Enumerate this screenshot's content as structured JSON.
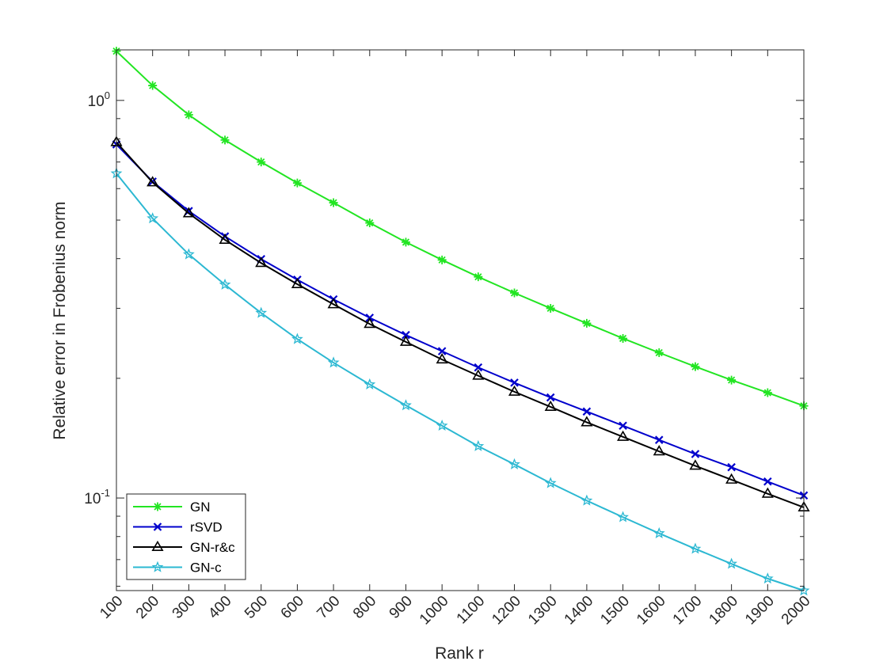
{
  "chart_data": {
    "type": "line",
    "title": "",
    "xlabel": "Rank r",
    "ylabel": "Relative error in Frobenius norm",
    "x": [
      100,
      200,
      300,
      400,
      500,
      600,
      700,
      800,
      900,
      1000,
      1100,
      1200,
      1300,
      1400,
      1500,
      1600,
      1700,
      1800,
      1900,
      2000
    ],
    "xlim": [
      100,
      2000
    ],
    "ylim": [
      0.0585,
      1.34
    ],
    "yscale": "log",
    "y_tick_labels": [
      {
        "value": 1,
        "mantissa": "10",
        "exponent": "0"
      },
      {
        "value": 0.1,
        "mantissa": "10",
        "exponent": "-1"
      }
    ],
    "grid": false,
    "legend_position": "bottom-left",
    "series": [
      {
        "name": "GN",
        "color": "#22e522",
        "marker": "asterisk",
        "values": [
          1.33,
          1.09,
          0.92,
          0.795,
          0.7,
          0.62,
          0.553,
          0.492,
          0.44,
          0.397,
          0.36,
          0.328,
          0.3,
          0.275,
          0.252,
          0.232,
          0.214,
          0.198,
          0.184,
          0.1705
        ]
      },
      {
        "name": "rSVD",
        "color": "#0000cc",
        "marker": "x",
        "values": [
          0.775,
          0.625,
          0.527,
          0.455,
          0.399,
          0.354,
          0.316,
          0.284,
          0.257,
          0.234,
          0.213,
          0.195,
          0.179,
          0.165,
          0.152,
          0.14,
          0.129,
          0.1195,
          0.11,
          0.1015
        ]
      },
      {
        "name": "GN-r&c",
        "color": "#000000",
        "marker": "triangle",
        "values": [
          0.785,
          0.622,
          0.52,
          0.446,
          0.39,
          0.345,
          0.307,
          0.274,
          0.247,
          0.223,
          0.203,
          0.185,
          0.1695,
          0.155,
          0.1425,
          0.131,
          0.1205,
          0.1112,
          0.1025,
          0.0947
        ]
      },
      {
        "name": "GN-c",
        "color": "#2cb8d2",
        "marker": "star",
        "values": [
          0.655,
          0.505,
          0.41,
          0.344,
          0.292,
          0.251,
          0.219,
          0.193,
          0.171,
          0.152,
          0.135,
          0.1215,
          0.109,
          0.0985,
          0.0895,
          0.0815,
          0.0745,
          0.0683,
          0.0627,
          0.0585
        ]
      }
    ]
  }
}
